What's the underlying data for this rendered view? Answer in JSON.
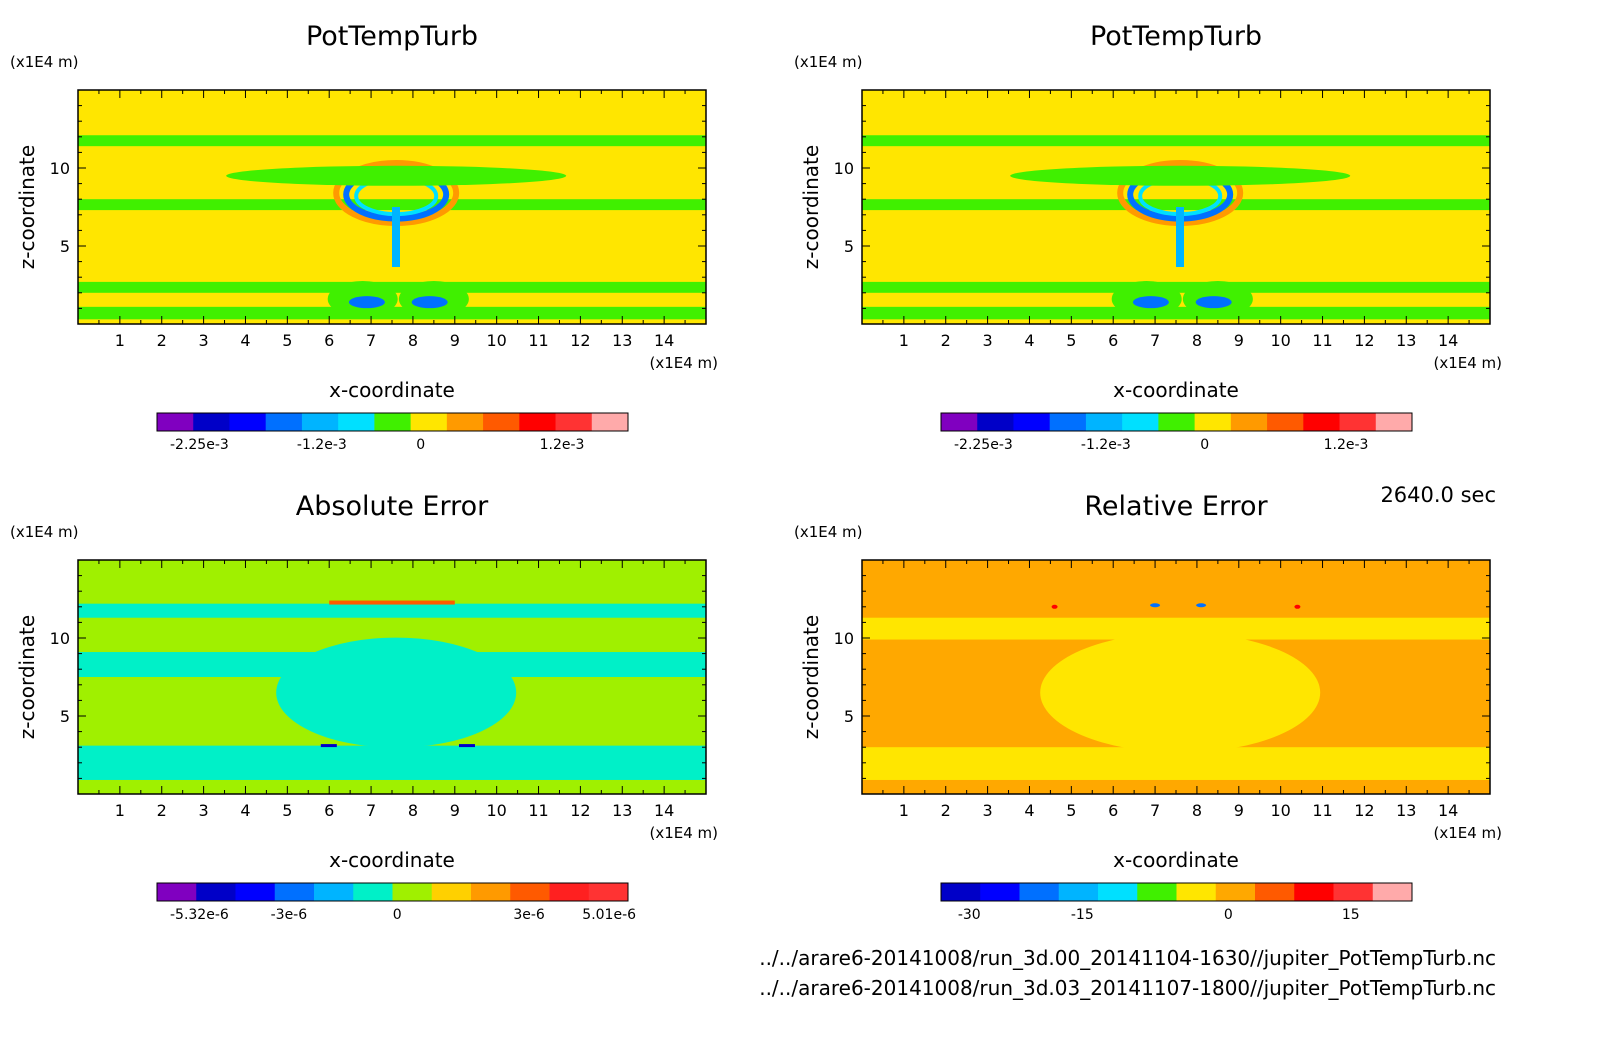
{
  "timestamp": "2640.0 sec",
  "footer_lines": [
    "../../arare6-20141008/run_3d.00_20141104-1630//jupiter_PotTempTurb.nc",
    "../../arare6-20141008/run_3d.03_20141107-1800//jupiter_PotTempTurb.nc"
  ],
  "chart_data": [
    {
      "type": "heatmap",
      "title": "PotTempTurb",
      "xlabel": "x-coordinate",
      "ylabel": "z-coordinate",
      "x_unit": "(x1E4 m)",
      "y_unit": "(x1E4 m)",
      "xlim": [
        0,
        15
      ],
      "ylim": [
        0,
        15
      ],
      "x_ticks": [
        1,
        2,
        3,
        4,
        5,
        6,
        7,
        8,
        9,
        10,
        11,
        12,
        13,
        14
      ],
      "y_ticks": [
        5,
        10
      ],
      "background_color": "#ffe600",
      "colorbar": {
        "colors": [
          "#8000c0",
          "#0000c8",
          "#0000ff",
          "#0070ff",
          "#00b4ff",
          "#00e0ff",
          "#40f000",
          "#ffe600",
          "#ff9a00",
          "#ff5a00",
          "#ff0000",
          "#ff3333",
          "#ffaaaa"
        ],
        "labels": [
          "-2.25e-3",
          "-1.2e-3",
          "0",
          "1.2e-3"
        ]
      }
    },
    {
      "type": "heatmap",
      "title": "PotTempTurb",
      "xlabel": "x-coordinate",
      "ylabel": "z-coordinate",
      "x_unit": "(x1E4 m)",
      "y_unit": "(x1E4 m)",
      "xlim": [
        0,
        15
      ],
      "ylim": [
        0,
        15
      ],
      "x_ticks": [
        1,
        2,
        3,
        4,
        5,
        6,
        7,
        8,
        9,
        10,
        11,
        12,
        13,
        14
      ],
      "y_ticks": [
        5,
        10
      ],
      "background_color": "#ffe600",
      "colorbar": {
        "colors": [
          "#8000c0",
          "#0000c8",
          "#0000ff",
          "#0070ff",
          "#00b4ff",
          "#00e0ff",
          "#40f000",
          "#ffe600",
          "#ff9a00",
          "#ff5a00",
          "#ff0000",
          "#ff3333",
          "#ffaaaa"
        ],
        "labels": [
          "-2.25e-3",
          "-1.2e-3",
          "0",
          "1.2e-3"
        ]
      }
    },
    {
      "type": "heatmap",
      "title": "Absolute Error",
      "xlabel": "x-coordinate",
      "ylabel": "z-coordinate",
      "x_unit": "(x1E4 m)",
      "y_unit": "(x1E4 m)",
      "xlim": [
        0,
        15
      ],
      "ylim": [
        0,
        15
      ],
      "x_ticks": [
        1,
        2,
        3,
        4,
        5,
        6,
        7,
        8,
        9,
        10,
        11,
        12,
        13,
        14
      ],
      "y_ticks": [
        5,
        10
      ],
      "background_color": "#a0f000",
      "colorbar": {
        "colors": [
          "#8000c0",
          "#0000c8",
          "#0000ff",
          "#0070ff",
          "#00b4ff",
          "#00f0c8",
          "#a0f000",
          "#ffd000",
          "#ff9a00",
          "#ff5a00",
          "#ff2020",
          "#ff3333"
        ],
        "labels": [
          "-5.32e-6",
          "-3e-6",
          "0",
          "3e-6",
          "5.01e-6"
        ]
      }
    },
    {
      "type": "heatmap",
      "title": "Relative Error",
      "xlabel": "x-coordinate",
      "ylabel": "z-coordinate",
      "x_unit": "(x1E4 m)",
      "y_unit": "(x1E4 m)",
      "xlim": [
        0,
        15
      ],
      "ylim": [
        0,
        15
      ],
      "x_ticks": [
        1,
        2,
        3,
        4,
        5,
        6,
        7,
        8,
        9,
        10,
        11,
        12,
        13,
        14
      ],
      "y_ticks": [
        5,
        10
      ],
      "background_color": "#ffa800",
      "colorbar": {
        "colors": [
          "#0000c8",
          "#0000ff",
          "#0070ff",
          "#00b4ff",
          "#00e0ff",
          "#40f000",
          "#ffe600",
          "#ffa800",
          "#ff5a00",
          "#ff0000",
          "#ff3333",
          "#ffaaaa"
        ],
        "labels": [
          "-30",
          "-15",
          "0",
          "15"
        ]
      }
    }
  ]
}
